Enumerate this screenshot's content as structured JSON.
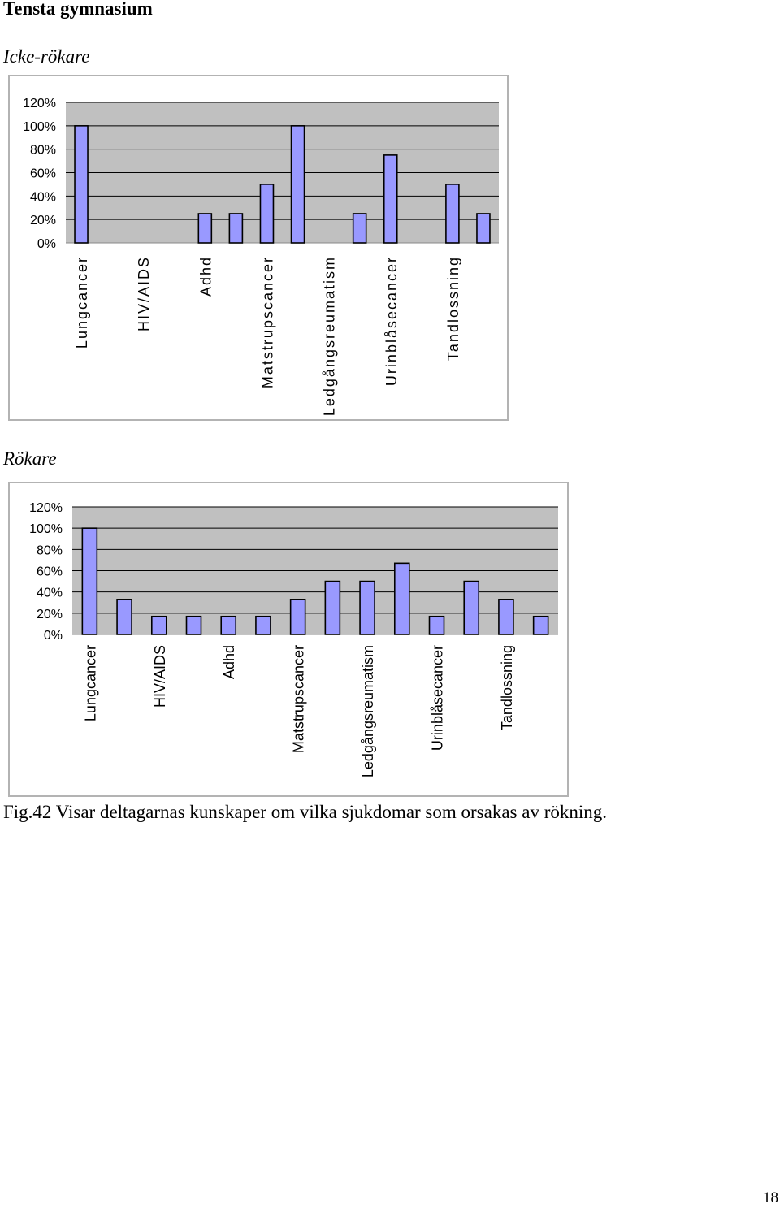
{
  "document": {
    "heading": "Tensta gymnasium",
    "caption": "Fig.42 Visar deltagarnas kunskaper om vilka sjukdomar som orsakas av rökning.",
    "page_number": "18"
  },
  "colors": {
    "plot_background": "#c0c0c0",
    "bar_fill": "#9999ff",
    "bar_stroke": "#000000",
    "frame_border": "#b3b3b3"
  },
  "chart_data": [
    {
      "type": "bar",
      "title": "Icke-rökare",
      "xlabel": "",
      "ylabel": "",
      "ylim": [
        0,
        120
      ],
      "yticks": [
        "120%",
        "100%",
        "80%",
        "60%",
        "40%",
        "20%",
        "0%"
      ],
      "grid": true,
      "categories": [
        "Lungcancer",
        "",
        "HIV/AIDS",
        "",
        "Adhd",
        "",
        "Matstrupscancer",
        "",
        "Ledgångsreumatism",
        "",
        "Urinblåsecancer",
        "",
        "Tandlossning",
        ""
      ],
      "values": [
        100,
        0,
        0,
        0,
        25,
        25,
        50,
        100,
        0,
        25,
        75,
        0,
        50,
        25
      ],
      "unit": "%"
    },
    {
      "type": "bar",
      "title": "Rökare",
      "xlabel": "",
      "ylabel": "",
      "ylim": [
        0,
        120
      ],
      "yticks": [
        "120%",
        "100%",
        "80%",
        "60%",
        "40%",
        "20%",
        "0%"
      ],
      "grid": true,
      "categories": [
        "Lungcancer",
        "",
        "HIV/AIDS",
        "",
        "Adhd",
        "",
        "Matstrupscancer",
        "",
        "Ledgångsreumatism",
        "",
        "Urinblåsecancer",
        "",
        "Tandlossning",
        ""
      ],
      "values": [
        100,
        33,
        17,
        17,
        17,
        17,
        33,
        50,
        50,
        67,
        17,
        50,
        33,
        17
      ],
      "unit": "%"
    }
  ]
}
